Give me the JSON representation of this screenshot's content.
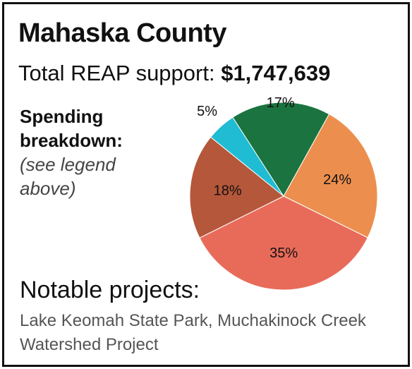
{
  "header": {
    "title": "Mahaska County",
    "total_label": "Total REAP support: ",
    "total_value": "$1,747,639"
  },
  "breakdown": {
    "heading": "Spending breakdown:",
    "note": "(see legend above)"
  },
  "chart_data": {
    "type": "pie",
    "title": "",
    "slices": [
      {
        "value": 24,
        "label": "24%",
        "color": "#ec8f4e"
      },
      {
        "value": 35,
        "label": "35%",
        "color": "#e86b5a"
      },
      {
        "value": 18,
        "label": "18%",
        "color": "#b5573a"
      },
      {
        "value": 5,
        "label": "5%",
        "color": "#1fbcd3"
      },
      {
        "value": 17,
        "label": "17%",
        "color": "#1b7340"
      }
    ]
  },
  "notable": {
    "heading": "Notable projects:",
    "text": "Lake Keomah State Park, Muchakinock Creek Watershed Project"
  }
}
